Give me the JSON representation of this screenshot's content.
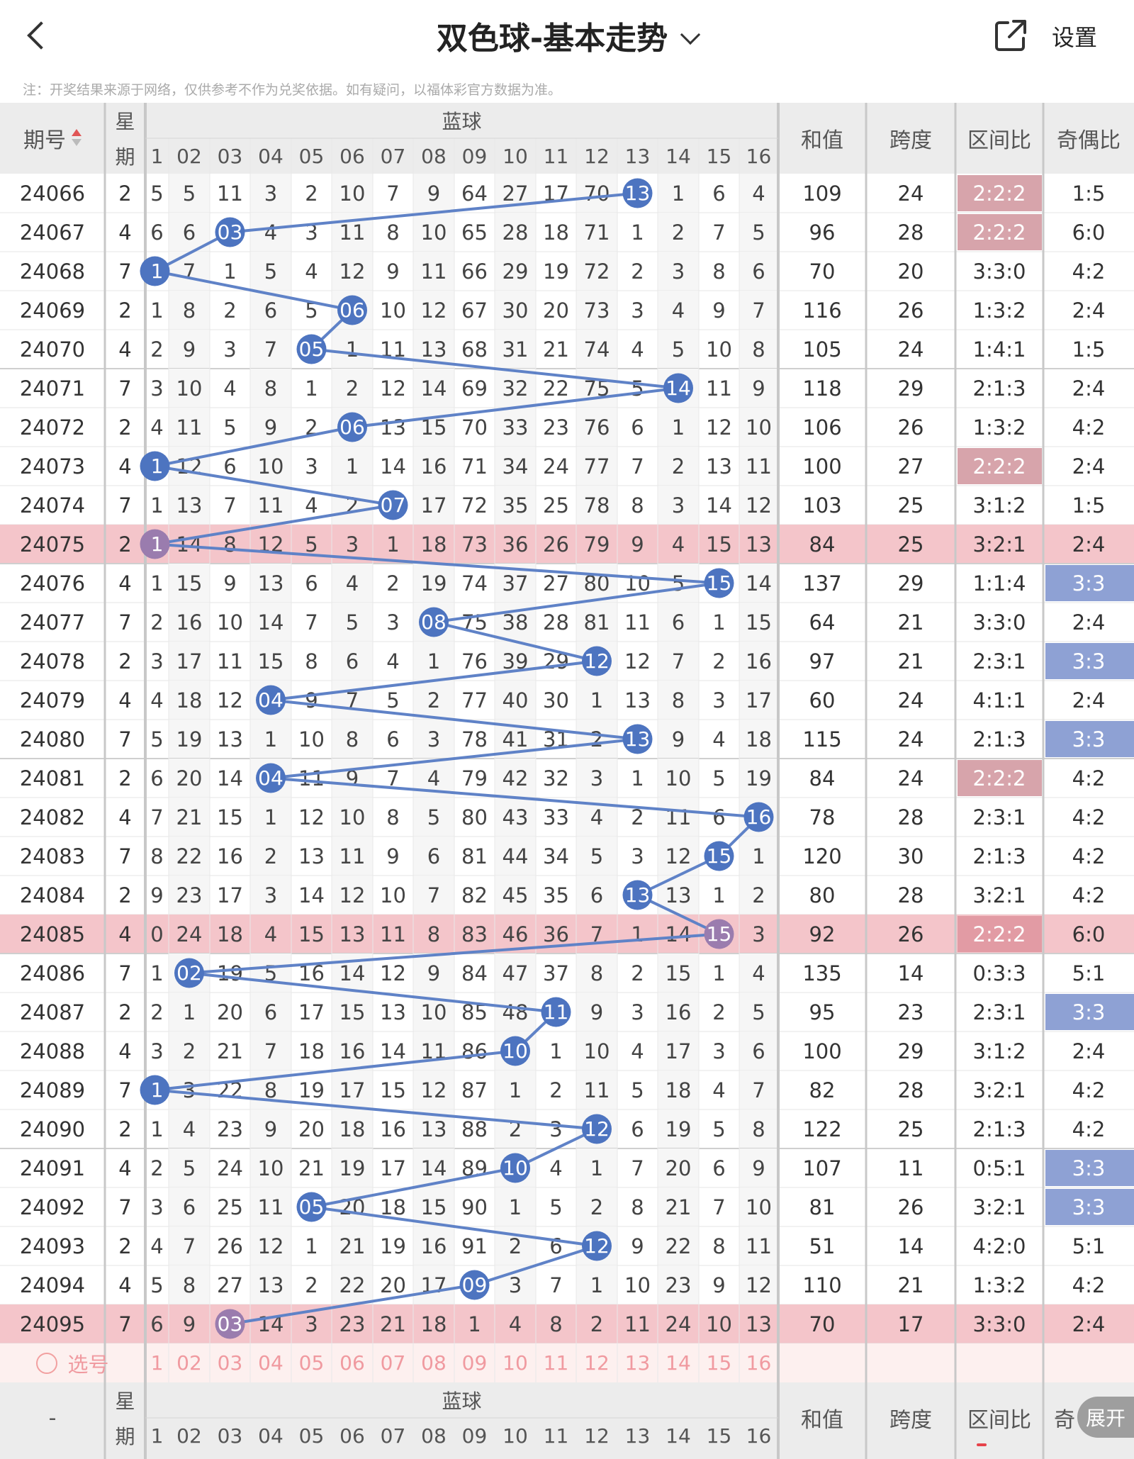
{
  "header": {
    "title": "双色球-基本走势",
    "settings_label": "设置",
    "note": "注：开奖结果来源于网络，仅供参考不作为兑奖依据。如有疑问，以福体彩官方数据为准。"
  },
  "table": {
    "col_issue": "期号",
    "col_weekday_top": "星",
    "col_weekday_bottom": "期",
    "blue_group": "蓝球",
    "blue_cols": [
      "1",
      "02",
      "03",
      "04",
      "05",
      "06",
      "07",
      "08",
      "09",
      "10",
      "11",
      "12",
      "13",
      "14",
      "15",
      "16"
    ],
    "col_sum": "和值",
    "col_span": "跨度",
    "col_zone": "区间比",
    "col_parity": "奇偶比",
    "footer_issue": "-",
    "footer_parity": "奇",
    "select_label": "选号",
    "expand_label": "展开",
    "colors": {
      "blue_ball": "#4d74c0",
      "blue_ball_highlight": "#9a7cae",
      "line": "#5f82c7",
      "highlight_row": "#f4c5ca",
      "zone_badge": "#d7a4ab",
      "zone_badge_highlight": "#e29ba4",
      "parity_badge": "#8ea1d4",
      "select_text": "#f09aa0",
      "select_row_bg": "#fdf0ef"
    },
    "rows": [
      {
        "issue": "24066",
        "week": "2",
        "blue": [
          "5",
          "5",
          "11",
          "3",
          "2",
          "10",
          "7",
          "9",
          "64",
          "27",
          "17",
          "70",
          "13",
          "1",
          "6",
          "4"
        ],
        "sum": "109",
        "span": "24",
        "zone": "2:2:2",
        "parity": "1:5",
        "zone_badge": true,
        "parity_badge": false,
        "hl": false
      },
      {
        "issue": "24067",
        "week": "4",
        "blue": [
          "6",
          "6",
          "03",
          "4",
          "3",
          "11",
          "8",
          "10",
          "65",
          "28",
          "18",
          "71",
          "1",
          "2",
          "7",
          "5"
        ],
        "sum": "96",
        "span": "28",
        "zone": "2:2:2",
        "parity": "6:0",
        "zone_badge": true,
        "parity_badge": false,
        "hl": false
      },
      {
        "issue": "24068",
        "week": "7",
        "blue": [
          "1",
          "7",
          "1",
          "5",
          "4",
          "12",
          "9",
          "11",
          "66",
          "29",
          "19",
          "72",
          "2",
          "3",
          "8",
          "6"
        ],
        "sum": "70",
        "span": "20",
        "zone": "3:3:0",
        "parity": "4:2",
        "zone_badge": false,
        "parity_badge": false,
        "hl": false
      },
      {
        "issue": "24069",
        "week": "2",
        "blue": [
          "1",
          "8",
          "2",
          "6",
          "5",
          "06",
          "10",
          "12",
          "67",
          "30",
          "20",
          "73",
          "3",
          "4",
          "9",
          "7"
        ],
        "sum": "116",
        "span": "26",
        "zone": "1:3:2",
        "parity": "2:4",
        "zone_badge": false,
        "parity_badge": false,
        "hl": false
      },
      {
        "issue": "24070",
        "week": "4",
        "blue": [
          "2",
          "9",
          "3",
          "7",
          "05",
          "1",
          "11",
          "13",
          "68",
          "31",
          "21",
          "74",
          "4",
          "5",
          "10",
          "8"
        ],
        "sum": "105",
        "span": "24",
        "zone": "1:4:1",
        "parity": "1:5",
        "zone_badge": false,
        "parity_badge": false,
        "hl": false
      },
      {
        "issue": "24071",
        "week": "7",
        "blue": [
          "3",
          "10",
          "4",
          "8",
          "1",
          "2",
          "12",
          "14",
          "69",
          "32",
          "22",
          "75",
          "5",
          "14",
          "11",
          "9"
        ],
        "sum": "118",
        "span": "29",
        "zone": "2:1:3",
        "parity": "2:4",
        "zone_badge": false,
        "parity_badge": false,
        "hl": false
      },
      {
        "issue": "24072",
        "week": "2",
        "blue": [
          "4",
          "11",
          "5",
          "9",
          "2",
          "06",
          "13",
          "15",
          "70",
          "33",
          "23",
          "76",
          "6",
          "1",
          "12",
          "10"
        ],
        "sum": "106",
        "span": "26",
        "zone": "1:3:2",
        "parity": "4:2",
        "zone_badge": false,
        "parity_badge": false,
        "hl": false
      },
      {
        "issue": "24073",
        "week": "4",
        "blue": [
          "1",
          "12",
          "6",
          "10",
          "3",
          "1",
          "14",
          "16",
          "71",
          "34",
          "24",
          "77",
          "7",
          "2",
          "13",
          "11"
        ],
        "sum": "100",
        "span": "27",
        "zone": "2:2:2",
        "parity": "2:4",
        "zone_badge": true,
        "parity_badge": false,
        "hl": false
      },
      {
        "issue": "24074",
        "week": "7",
        "blue": [
          "1",
          "13",
          "7",
          "11",
          "4",
          "2",
          "07",
          "17",
          "72",
          "35",
          "25",
          "78",
          "8",
          "3",
          "14",
          "12"
        ],
        "sum": "103",
        "span": "25",
        "zone": "3:1:2",
        "parity": "1:5",
        "zone_badge": false,
        "parity_badge": false,
        "hl": false
      },
      {
        "issue": "24075",
        "week": "2",
        "blue": [
          "1",
          "14",
          "8",
          "12",
          "5",
          "3",
          "1",
          "18",
          "73",
          "36",
          "26",
          "79",
          "9",
          "4",
          "15",
          "13"
        ],
        "sum": "84",
        "span": "25",
        "zone": "3:2:1",
        "parity": "2:4",
        "zone_badge": false,
        "parity_badge": false,
        "hl": true
      },
      {
        "issue": "24076",
        "week": "4",
        "blue": [
          "1",
          "15",
          "9",
          "13",
          "6",
          "4",
          "2",
          "19",
          "74",
          "37",
          "27",
          "80",
          "10",
          "5",
          "15",
          "14"
        ],
        "sum": "137",
        "span": "29",
        "zone": "1:1:4",
        "parity": "3:3",
        "zone_badge": false,
        "parity_badge": true,
        "hl": false
      },
      {
        "issue": "24077",
        "week": "7",
        "blue": [
          "2",
          "16",
          "10",
          "14",
          "7",
          "5",
          "3",
          "08",
          "75",
          "38",
          "28",
          "81",
          "11",
          "6",
          "1",
          "15"
        ],
        "sum": "64",
        "span": "21",
        "zone": "3:3:0",
        "parity": "2:4",
        "zone_badge": false,
        "parity_badge": false,
        "hl": false
      },
      {
        "issue": "24078",
        "week": "2",
        "blue": [
          "3",
          "17",
          "11",
          "15",
          "8",
          "6",
          "4",
          "1",
          "76",
          "39",
          "29",
          "12",
          "12",
          "7",
          "2",
          "16"
        ],
        "sum": "97",
        "span": "21",
        "zone": "2:3:1",
        "parity": "3:3",
        "zone_badge": false,
        "parity_badge": true,
        "hl": false
      },
      {
        "issue": "24079",
        "week": "4",
        "blue": [
          "4",
          "18",
          "12",
          "04",
          "9",
          "7",
          "5",
          "2",
          "77",
          "40",
          "30",
          "1",
          "13",
          "8",
          "3",
          "17"
        ],
        "sum": "60",
        "span": "24",
        "zone": "4:1:1",
        "parity": "2:4",
        "zone_badge": false,
        "parity_badge": false,
        "hl": false
      },
      {
        "issue": "24080",
        "week": "7",
        "blue": [
          "5",
          "19",
          "13",
          "1",
          "10",
          "8",
          "6",
          "3",
          "78",
          "41",
          "31",
          "2",
          "13",
          "9",
          "4",
          "18"
        ],
        "sum": "115",
        "span": "24",
        "zone": "2:1:3",
        "parity": "3:3",
        "zone_badge": false,
        "parity_badge": true,
        "hl": false
      },
      {
        "issue": "24081",
        "week": "2",
        "blue": [
          "6",
          "20",
          "14",
          "04",
          "11",
          "9",
          "7",
          "4",
          "79",
          "42",
          "32",
          "3",
          "1",
          "10",
          "5",
          "19"
        ],
        "sum": "84",
        "span": "24",
        "zone": "2:2:2",
        "parity": "4:2",
        "zone_badge": true,
        "parity_badge": false,
        "hl": false
      },
      {
        "issue": "24082",
        "week": "4",
        "blue": [
          "7",
          "21",
          "15",
          "1",
          "12",
          "10",
          "8",
          "5",
          "80",
          "43",
          "33",
          "4",
          "2",
          "11",
          "6",
          "16"
        ],
        "sum": "78",
        "span": "28",
        "zone": "2:3:1",
        "parity": "4:2",
        "zone_badge": false,
        "parity_badge": false,
        "hl": false
      },
      {
        "issue": "24083",
        "week": "7",
        "blue": [
          "8",
          "22",
          "16",
          "2",
          "13",
          "11",
          "9",
          "6",
          "81",
          "44",
          "34",
          "5",
          "3",
          "12",
          "15",
          "1"
        ],
        "sum": "120",
        "span": "30",
        "zone": "2:1:3",
        "parity": "4:2",
        "zone_badge": false,
        "parity_badge": false,
        "hl": false
      },
      {
        "issue": "24084",
        "week": "2",
        "blue": [
          "9",
          "23",
          "17",
          "3",
          "14",
          "12",
          "10",
          "7",
          "82",
          "45",
          "35",
          "6",
          "13",
          "13",
          "1",
          "2"
        ],
        "sum": "80",
        "span": "28",
        "zone": "3:2:1",
        "parity": "4:2",
        "zone_badge": false,
        "parity_badge": false,
        "hl": false
      },
      {
        "issue": "24085",
        "week": "4",
        "blue": [
          "0",
          "24",
          "18",
          "4",
          "15",
          "13",
          "11",
          "8",
          "83",
          "46",
          "36",
          "7",
          "1",
          "14",
          "15",
          "3"
        ],
        "sum": "92",
        "span": "26",
        "zone": "2:2:2",
        "parity": "6:0",
        "zone_badge": true,
        "parity_badge": false,
        "hl": true
      },
      {
        "issue": "24086",
        "week": "7",
        "blue": [
          "1",
          "02",
          "19",
          "5",
          "16",
          "14",
          "12",
          "9",
          "84",
          "47",
          "37",
          "8",
          "2",
          "15",
          "1",
          "4"
        ],
        "sum": "135",
        "span": "14",
        "zone": "0:3:3",
        "parity": "5:1",
        "zone_badge": false,
        "parity_badge": false,
        "hl": false
      },
      {
        "issue": "24087",
        "week": "2",
        "blue": [
          "2",
          "1",
          "20",
          "6",
          "17",
          "15",
          "13",
          "10",
          "85",
          "48",
          "11",
          "9",
          "3",
          "16",
          "2",
          "5"
        ],
        "sum": "95",
        "span": "23",
        "zone": "2:3:1",
        "parity": "3:3",
        "zone_badge": false,
        "parity_badge": true,
        "hl": false
      },
      {
        "issue": "24088",
        "week": "4",
        "blue": [
          "3",
          "2",
          "21",
          "7",
          "18",
          "16",
          "14",
          "11",
          "86",
          "10",
          "1",
          "10",
          "4",
          "17",
          "3",
          "6"
        ],
        "sum": "100",
        "span": "29",
        "zone": "3:1:2",
        "parity": "2:4",
        "zone_badge": false,
        "parity_badge": false,
        "hl": false
      },
      {
        "issue": "24089",
        "week": "7",
        "blue": [
          "1",
          "3",
          "22",
          "8",
          "19",
          "17",
          "15",
          "12",
          "87",
          "1",
          "2",
          "11",
          "5",
          "18",
          "4",
          "7"
        ],
        "sum": "82",
        "span": "28",
        "zone": "3:2:1",
        "parity": "4:2",
        "zone_badge": false,
        "parity_badge": false,
        "hl": false
      },
      {
        "issue": "24090",
        "week": "2",
        "blue": [
          "1",
          "4",
          "23",
          "9",
          "20",
          "18",
          "16",
          "13",
          "88",
          "2",
          "3",
          "12",
          "6",
          "19",
          "5",
          "8"
        ],
        "sum": "122",
        "span": "25",
        "zone": "2:1:3",
        "parity": "4:2",
        "zone_badge": false,
        "parity_badge": false,
        "hl": false
      },
      {
        "issue": "24091",
        "week": "4",
        "blue": [
          "2",
          "5",
          "24",
          "10",
          "21",
          "19",
          "17",
          "14",
          "89",
          "10",
          "4",
          "1",
          "7",
          "20",
          "6",
          "9"
        ],
        "sum": "107",
        "span": "11",
        "zone": "0:5:1",
        "parity": "3:3",
        "zone_badge": false,
        "parity_badge": true,
        "hl": false
      },
      {
        "issue": "24092",
        "week": "7",
        "blue": [
          "3",
          "6",
          "25",
          "11",
          "05",
          "20",
          "18",
          "15",
          "90",
          "1",
          "5",
          "2",
          "8",
          "21",
          "7",
          "10"
        ],
        "sum": "81",
        "span": "26",
        "zone": "3:2:1",
        "parity": "3:3",
        "zone_badge": false,
        "parity_badge": true,
        "hl": false
      },
      {
        "issue": "24093",
        "week": "2",
        "blue": [
          "4",
          "7",
          "26",
          "12",
          "1",
          "21",
          "19",
          "16",
          "91",
          "2",
          "6",
          "12",
          "9",
          "22",
          "8",
          "11"
        ],
        "sum": "51",
        "span": "14",
        "zone": "4:2:0",
        "parity": "5:1",
        "zone_badge": false,
        "parity_badge": false,
        "hl": false
      },
      {
        "issue": "24094",
        "week": "4",
        "blue": [
          "5",
          "8",
          "27",
          "13",
          "2",
          "22",
          "20",
          "17",
          "09",
          "3",
          "7",
          "1",
          "10",
          "23",
          "9",
          "12"
        ],
        "sum": "110",
        "span": "21",
        "zone": "1:3:2",
        "parity": "4:2",
        "zone_badge": false,
        "parity_badge": false,
        "hl": false
      },
      {
        "issue": "24095",
        "week": "7",
        "blue": [
          "6",
          "9",
          "03",
          "14",
          "3",
          "23",
          "21",
          "18",
          "1",
          "4",
          "8",
          "2",
          "11",
          "24",
          "10",
          "13"
        ],
        "sum": "70",
        "span": "17",
        "zone": "3:3:0",
        "parity": "2:4",
        "zone_badge": false,
        "parity_badge": false,
        "hl": true
      }
    ],
    "blue_hits": [
      13,
      3,
      1,
      6,
      5,
      14,
      6,
      1,
      7,
      1,
      15,
      8,
      12,
      4,
      13,
      4,
      16,
      15,
      13,
      15,
      2,
      11,
      10,
      1,
      12,
      10,
      5,
      12,
      9,
      3
    ]
  }
}
